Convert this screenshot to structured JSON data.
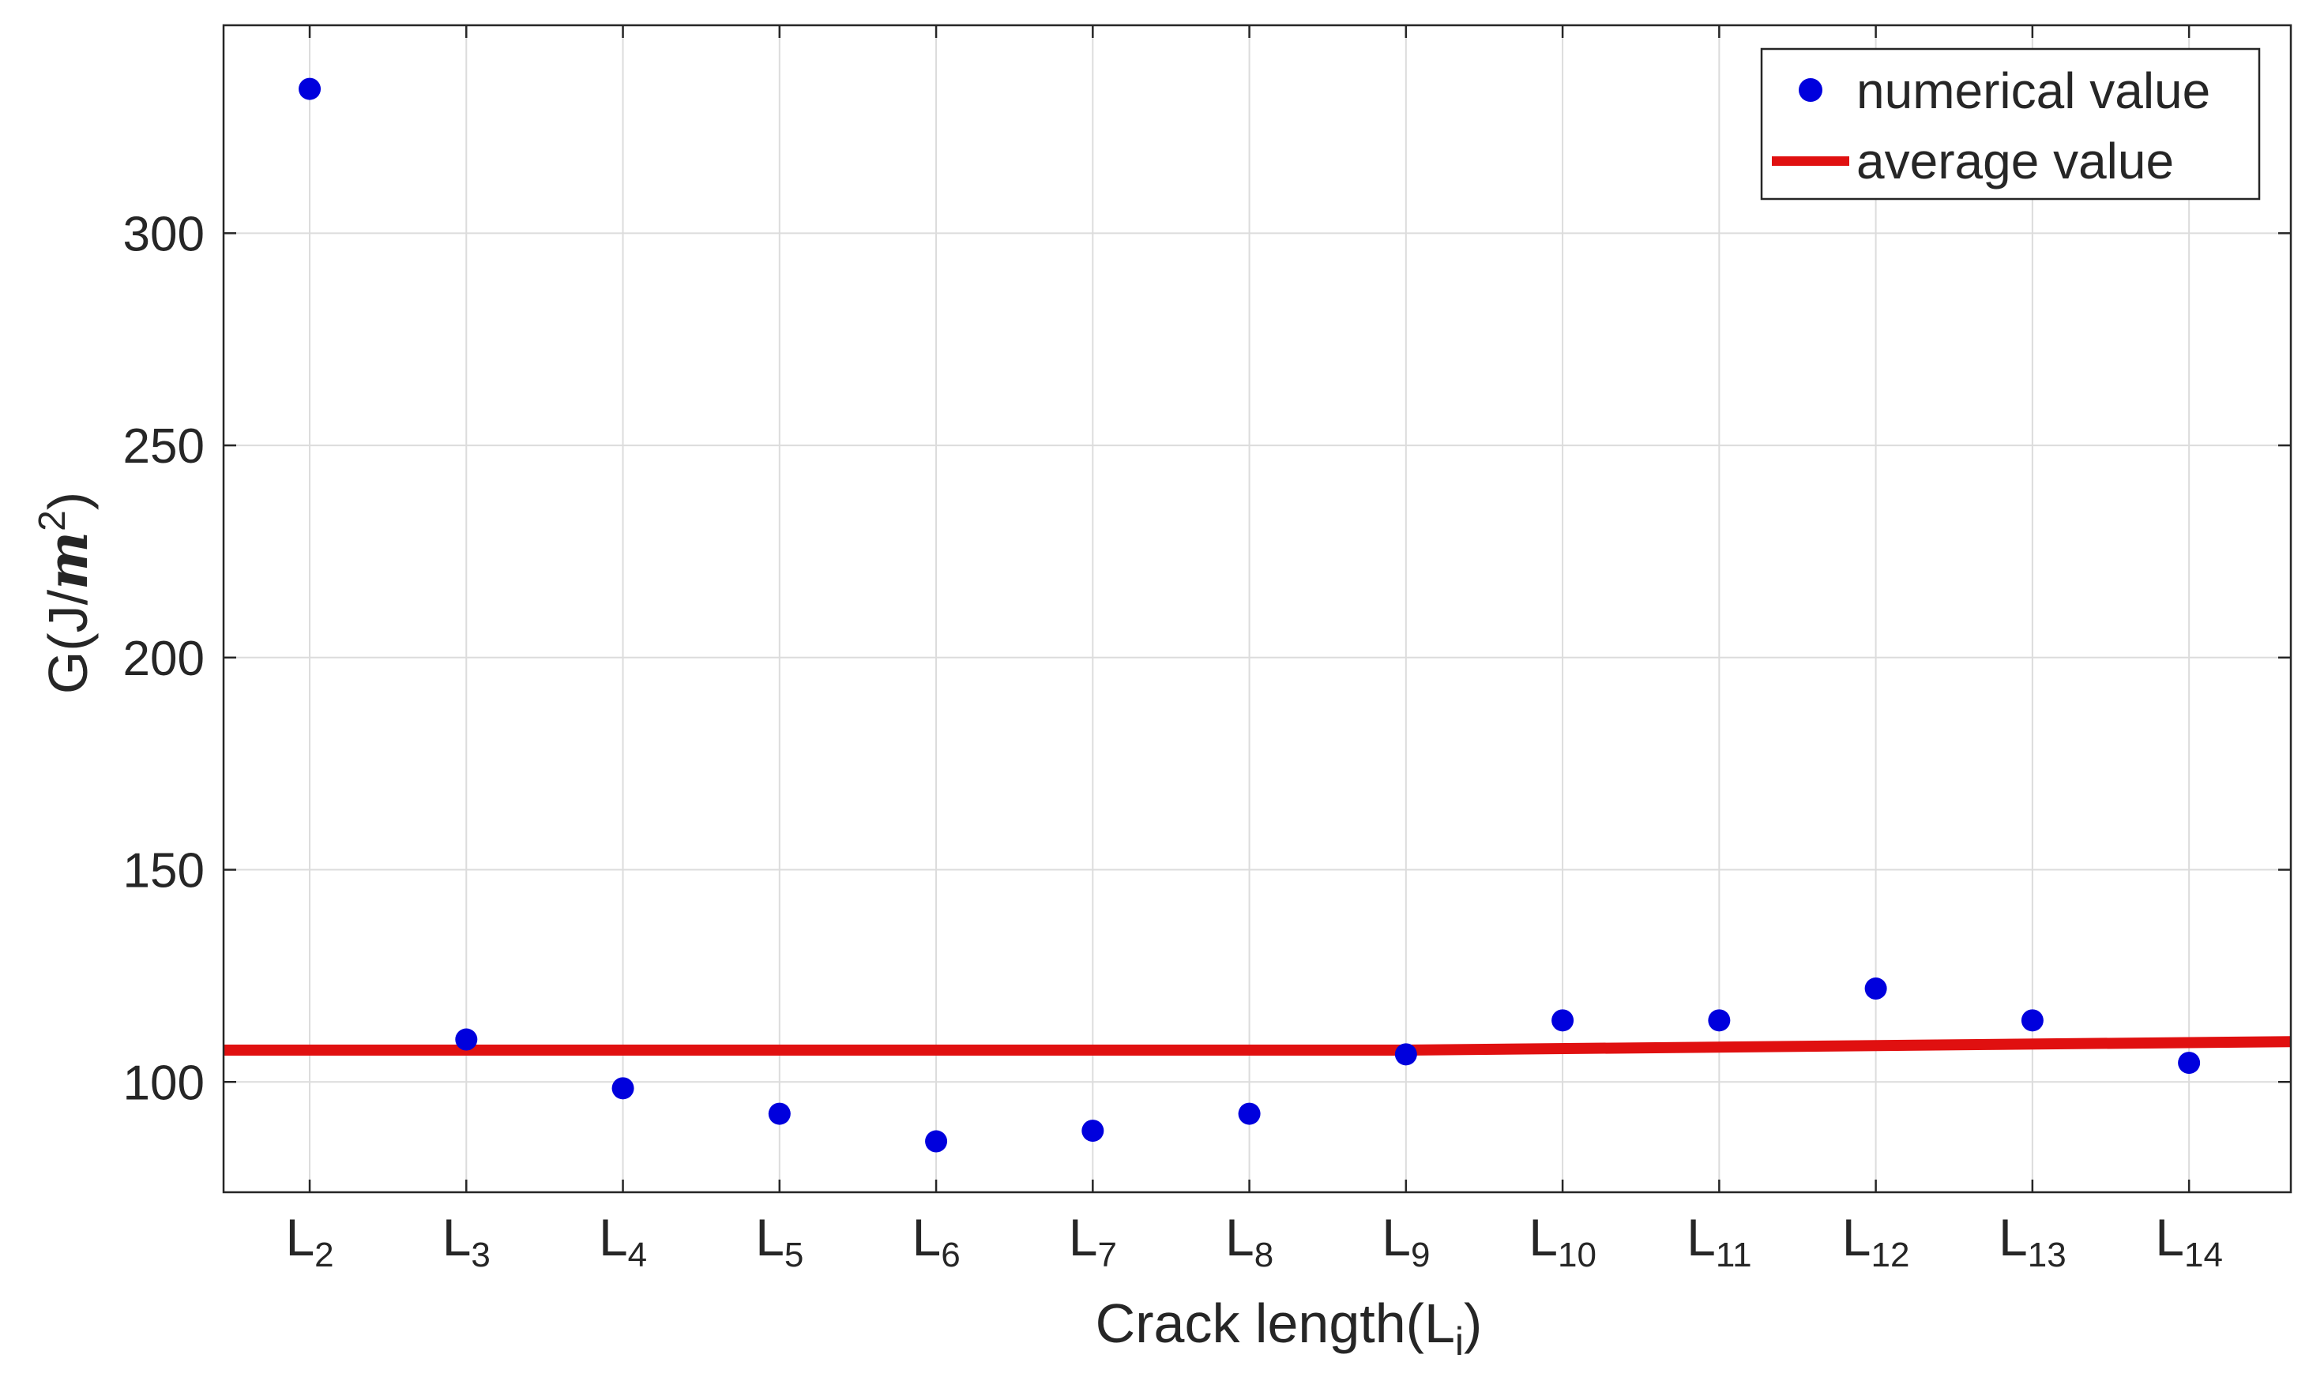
{
  "chart_data": {
    "type": "scatter",
    "xlabel": "Crack length(Lᵢ)",
    "xlabel_main": "Crack length(L",
    "xlabel_sub": "i",
    "xlabel_close": ")",
    "ylabel": "G(J/m²)",
    "ylabel_main": "G(J/",
    "ylabel_m": "m",
    "ylabel_sup": "2",
    "ylabel_close": ")",
    "categories": [
      "L2",
      "L3",
      "L4",
      "L5",
      "L6",
      "L7",
      "L8",
      "L9",
      "L10",
      "L11",
      "L12",
      "L13",
      "L14"
    ],
    "category_labels": [
      {
        "main": "L",
        "sub": "2"
      },
      {
        "main": "L",
        "sub": "3"
      },
      {
        "main": "L",
        "sub": "4"
      },
      {
        "main": "L",
        "sub": "5"
      },
      {
        "main": "L",
        "sub": "6"
      },
      {
        "main": "L",
        "sub": "7"
      },
      {
        "main": "L",
        "sub": "8"
      },
      {
        "main": "L",
        "sub": "9"
      },
      {
        "main": "L",
        "sub": "10"
      },
      {
        "main": "L",
        "sub": "11"
      },
      {
        "main": "L",
        "sub": "12"
      },
      {
        "main": "L",
        "sub": "13"
      },
      {
        "main": "L",
        "sub": "14"
      }
    ],
    "xlim": [
      1.45,
      14.65
    ],
    "ylim": [
      74,
      349
    ],
    "yticks": [
      100,
      150,
      200,
      250,
      300
    ],
    "grid": true,
    "legend_position": "top-right",
    "series": [
      {
        "name": "numerical value",
        "kind": "scatter",
        "color": "#0000dd",
        "x": [
          2,
          3,
          4,
          5,
          6,
          7,
          8,
          9,
          10,
          11,
          12,
          13,
          14
        ],
        "values": [
          334,
          110,
          98.5,
          92.5,
          86,
          88.5,
          92.5,
          106.5,
          114.5,
          114.5,
          122,
          114.5,
          104.5
        ]
      },
      {
        "name": "average value",
        "kind": "line",
        "color": "#e01010",
        "x": [
          1.45,
          9,
          14.65
        ],
        "values": [
          107.5,
          107.5,
          109.5
        ]
      }
    ]
  }
}
